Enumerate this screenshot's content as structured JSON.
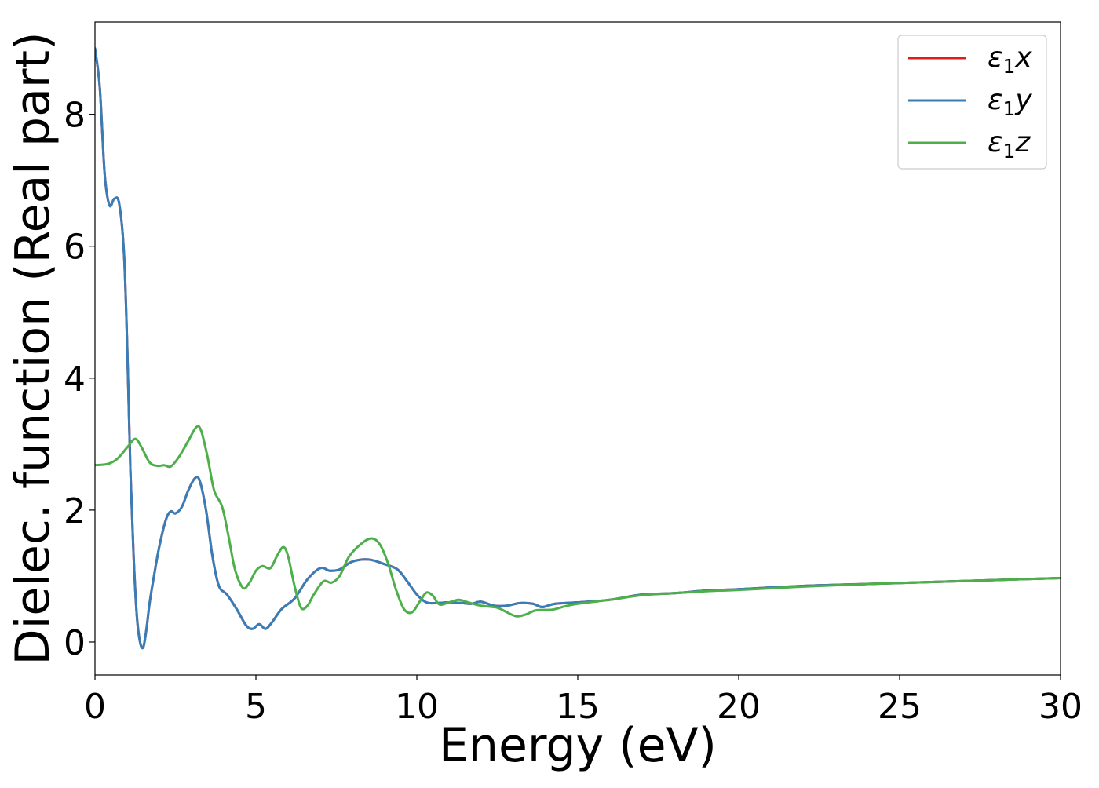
{
  "chart_data": {
    "type": "line",
    "xlabel": "Energy (eV)",
    "ylabel": "Dielec. function (Real part)",
    "xlim": [
      0,
      30
    ],
    "ylim": [
      -0.5,
      9.4
    ],
    "xticks": [
      0,
      5,
      10,
      15,
      20,
      25,
      30
    ],
    "yticks": [
      0,
      2,
      4,
      6,
      8
    ],
    "xtick_labels": [
      "0",
      "5",
      "10",
      "15",
      "20",
      "25",
      "30"
    ],
    "ytick_labels": [
      "0",
      "2",
      "4",
      "6",
      "8"
    ],
    "grid": false,
    "legend_position": "top-right",
    "series": [
      {
        "name": "ε1x",
        "legend_main": "ε",
        "legend_sub": "1",
        "legend_var": "x",
        "color": "#e41a1c",
        "points": [
          [
            0,
            9.0
          ],
          [
            0.15,
            8.4
          ],
          [
            0.3,
            7.1
          ],
          [
            0.45,
            6.62
          ],
          [
            0.6,
            6.72
          ],
          [
            0.75,
            6.65
          ],
          [
            0.9,
            5.9
          ],
          [
            1.0,
            4.5
          ],
          [
            1.1,
            2.6
          ],
          [
            1.2,
            1.3
          ],
          [
            1.3,
            0.4
          ],
          [
            1.4,
            0.0
          ],
          [
            1.5,
            -0.08
          ],
          [
            1.6,
            0.2
          ],
          [
            1.7,
            0.6
          ],
          [
            1.85,
            1.05
          ],
          [
            2.0,
            1.45
          ],
          [
            2.2,
            1.85
          ],
          [
            2.35,
            1.98
          ],
          [
            2.5,
            1.95
          ],
          [
            2.7,
            2.05
          ],
          [
            2.9,
            2.3
          ],
          [
            3.1,
            2.48
          ],
          [
            3.25,
            2.45
          ],
          [
            3.45,
            2.0
          ],
          [
            3.65,
            1.3
          ],
          [
            3.85,
            0.85
          ],
          [
            4.1,
            0.72
          ],
          [
            4.4,
            0.5
          ],
          [
            4.7,
            0.25
          ],
          [
            4.9,
            0.2
          ],
          [
            5.1,
            0.27
          ],
          [
            5.3,
            0.2
          ],
          [
            5.5,
            0.3
          ],
          [
            5.8,
            0.5
          ],
          [
            6.2,
            0.66
          ],
          [
            6.6,
            0.95
          ],
          [
            7.0,
            1.12
          ],
          [
            7.3,
            1.08
          ],
          [
            7.6,
            1.1
          ],
          [
            8.0,
            1.22
          ],
          [
            8.5,
            1.25
          ],
          [
            9.0,
            1.18
          ],
          [
            9.4,
            1.1
          ],
          [
            9.7,
            0.92
          ],
          [
            10.0,
            0.72
          ],
          [
            10.3,
            0.6
          ],
          [
            10.6,
            0.59
          ],
          [
            11.0,
            0.6
          ],
          [
            11.4,
            0.59
          ],
          [
            11.7,
            0.58
          ],
          [
            12.0,
            0.61
          ],
          [
            12.4,
            0.55
          ],
          [
            12.8,
            0.55
          ],
          [
            13.2,
            0.59
          ],
          [
            13.6,
            0.58
          ],
          [
            13.9,
            0.53
          ],
          [
            14.3,
            0.58
          ],
          [
            15.0,
            0.6
          ],
          [
            16.0,
            0.64
          ],
          [
            17.0,
            0.72
          ],
          [
            18.0,
            0.74
          ],
          [
            19.0,
            0.78
          ],
          [
            20.0,
            0.8
          ],
          [
            22.0,
            0.85
          ],
          [
            24.0,
            0.88
          ],
          [
            26.0,
            0.91
          ],
          [
            28.0,
            0.94
          ],
          [
            30.0,
            0.97
          ]
        ]
      },
      {
        "name": "ε1y",
        "legend_main": "ε",
        "legend_sub": "1",
        "legend_var": "y",
        "color": "#377eb8",
        "points": [
          [
            0,
            9.0
          ],
          [
            0.15,
            8.4
          ],
          [
            0.3,
            7.1
          ],
          [
            0.45,
            6.62
          ],
          [
            0.6,
            6.72
          ],
          [
            0.75,
            6.65
          ],
          [
            0.9,
            5.9
          ],
          [
            1.0,
            4.5
          ],
          [
            1.1,
            2.6
          ],
          [
            1.2,
            1.3
          ],
          [
            1.3,
            0.4
          ],
          [
            1.4,
            0.0
          ],
          [
            1.5,
            -0.08
          ],
          [
            1.6,
            0.2
          ],
          [
            1.7,
            0.6
          ],
          [
            1.85,
            1.05
          ],
          [
            2.0,
            1.45
          ],
          [
            2.2,
            1.85
          ],
          [
            2.35,
            1.98
          ],
          [
            2.5,
            1.95
          ],
          [
            2.7,
            2.05
          ],
          [
            2.9,
            2.3
          ],
          [
            3.1,
            2.48
          ],
          [
            3.25,
            2.45
          ],
          [
            3.45,
            2.0
          ],
          [
            3.65,
            1.3
          ],
          [
            3.85,
            0.85
          ],
          [
            4.1,
            0.72
          ],
          [
            4.4,
            0.5
          ],
          [
            4.7,
            0.25
          ],
          [
            4.9,
            0.2
          ],
          [
            5.1,
            0.27
          ],
          [
            5.3,
            0.2
          ],
          [
            5.5,
            0.3
          ],
          [
            5.8,
            0.5
          ],
          [
            6.2,
            0.66
          ],
          [
            6.6,
            0.95
          ],
          [
            7.0,
            1.12
          ],
          [
            7.3,
            1.08
          ],
          [
            7.6,
            1.1
          ],
          [
            8.0,
            1.22
          ],
          [
            8.5,
            1.25
          ],
          [
            9.0,
            1.18
          ],
          [
            9.4,
            1.1
          ],
          [
            9.7,
            0.92
          ],
          [
            10.0,
            0.72
          ],
          [
            10.3,
            0.6
          ],
          [
            10.6,
            0.59
          ],
          [
            11.0,
            0.6
          ],
          [
            11.4,
            0.59
          ],
          [
            11.7,
            0.58
          ],
          [
            12.0,
            0.61
          ],
          [
            12.4,
            0.55
          ],
          [
            12.8,
            0.55
          ],
          [
            13.2,
            0.59
          ],
          [
            13.6,
            0.58
          ],
          [
            13.9,
            0.53
          ],
          [
            14.3,
            0.58
          ],
          [
            15.0,
            0.6
          ],
          [
            16.0,
            0.64
          ],
          [
            17.0,
            0.72
          ],
          [
            18.0,
            0.74
          ],
          [
            19.0,
            0.78
          ],
          [
            20.0,
            0.8
          ],
          [
            22.0,
            0.85
          ],
          [
            24.0,
            0.88
          ],
          [
            26.0,
            0.91
          ],
          [
            28.0,
            0.94
          ],
          [
            30.0,
            0.97
          ]
        ]
      },
      {
        "name": "ε1z",
        "legend_main": "ε",
        "legend_sub": "1",
        "legend_var": "z",
        "color": "#4daf4a",
        "points": [
          [
            0,
            2.68
          ],
          [
            0.4,
            2.7
          ],
          [
            0.7,
            2.78
          ],
          [
            1.0,
            2.95
          ],
          [
            1.25,
            3.08
          ],
          [
            1.45,
            2.95
          ],
          [
            1.7,
            2.72
          ],
          [
            1.95,
            2.67
          ],
          [
            2.15,
            2.68
          ],
          [
            2.35,
            2.66
          ],
          [
            2.6,
            2.8
          ],
          [
            2.9,
            3.05
          ],
          [
            3.15,
            3.26
          ],
          [
            3.3,
            3.2
          ],
          [
            3.5,
            2.8
          ],
          [
            3.7,
            2.3
          ],
          [
            3.95,
            2.05
          ],
          [
            4.15,
            1.6
          ],
          [
            4.35,
            1.1
          ],
          [
            4.6,
            0.82
          ],
          [
            4.8,
            0.9
          ],
          [
            5.0,
            1.08
          ],
          [
            5.2,
            1.15
          ],
          [
            5.45,
            1.12
          ],
          [
            5.65,
            1.3
          ],
          [
            5.85,
            1.44
          ],
          [
            6.0,
            1.3
          ],
          [
            6.2,
            0.85
          ],
          [
            6.4,
            0.52
          ],
          [
            6.6,
            0.55
          ],
          [
            6.8,
            0.72
          ],
          [
            7.1,
            0.92
          ],
          [
            7.35,
            0.9
          ],
          [
            7.6,
            1.0
          ],
          [
            7.9,
            1.3
          ],
          [
            8.3,
            1.5
          ],
          [
            8.6,
            1.57
          ],
          [
            8.85,
            1.48
          ],
          [
            9.1,
            1.2
          ],
          [
            9.35,
            0.8
          ],
          [
            9.6,
            0.5
          ],
          [
            9.85,
            0.45
          ],
          [
            10.1,
            0.62
          ],
          [
            10.3,
            0.75
          ],
          [
            10.5,
            0.7
          ],
          [
            10.7,
            0.57
          ],
          [
            11.0,
            0.6
          ],
          [
            11.3,
            0.64
          ],
          [
            11.6,
            0.6
          ],
          [
            12.0,
            0.55
          ],
          [
            12.5,
            0.52
          ],
          [
            12.8,
            0.45
          ],
          [
            13.1,
            0.39
          ],
          [
            13.4,
            0.42
          ],
          [
            13.7,
            0.48
          ],
          [
            14.2,
            0.49
          ],
          [
            14.6,
            0.54
          ],
          [
            15.0,
            0.58
          ],
          [
            16.0,
            0.64
          ],
          [
            17.0,
            0.71
          ],
          [
            18.0,
            0.74
          ],
          [
            19.0,
            0.77
          ],
          [
            20.0,
            0.79
          ],
          [
            22.0,
            0.84
          ],
          [
            24.0,
            0.88
          ],
          [
            26.0,
            0.91
          ],
          [
            28.0,
            0.94
          ],
          [
            30.0,
            0.97
          ]
        ]
      }
    ]
  }
}
